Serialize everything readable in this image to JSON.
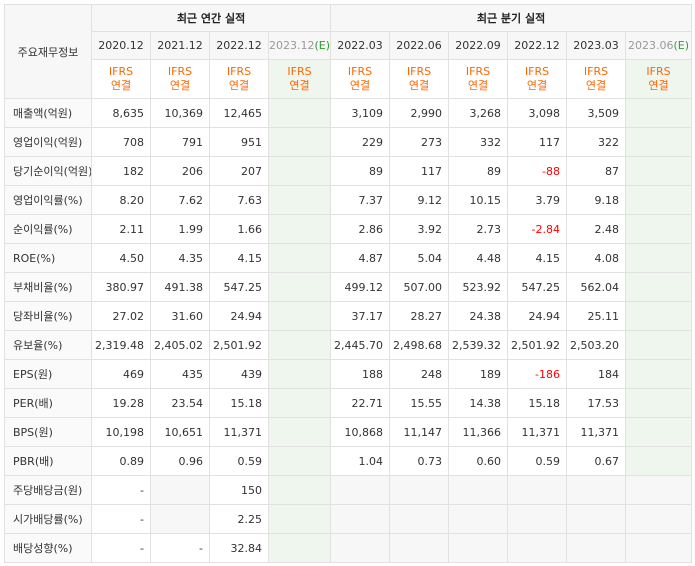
{
  "header": {
    "row_label": "주요재무정보",
    "annual_title": "최근 연간 실적",
    "quarter_title": "최근 분기 실적"
  },
  "periods": {
    "annual": [
      "2020.12",
      "2021.12",
      "2022.12",
      "2023.12"
    ],
    "annual_est_mark": "(E)",
    "quarter": [
      "2022.03",
      "2022.06",
      "2022.09",
      "2022.12",
      "2023.03",
      "2023.06"
    ],
    "quarter_est_mark": "(E)"
  },
  "basis": {
    "line1": "IFRS",
    "line2": "연결"
  },
  "rows": [
    {
      "label": "매출액(억원)",
      "values": [
        "8,635",
        "10,369",
        "12,465",
        "",
        "3,109",
        "2,990",
        "3,268",
        "3,098",
        "3,509",
        ""
      ]
    },
    {
      "label": "영업이익(억원)",
      "values": [
        "708",
        "791",
        "951",
        "",
        "229",
        "273",
        "332",
        "117",
        "322",
        ""
      ]
    },
    {
      "label": "당기순이익(억원)",
      "values": [
        "182",
        "206",
        "207",
        "",
        "89",
        "117",
        "89",
        "-88",
        "87",
        ""
      ]
    },
    {
      "label": "영업이익률(%)",
      "values": [
        "8.20",
        "7.62",
        "7.63",
        "",
        "7.37",
        "9.12",
        "10.15",
        "3.79",
        "9.18",
        ""
      ]
    },
    {
      "label": "순이익률(%)",
      "values": [
        "2.11",
        "1.99",
        "1.66",
        "",
        "2.86",
        "3.92",
        "2.73",
        "-2.84",
        "2.48",
        ""
      ]
    },
    {
      "label": "ROE(%)",
      "values": [
        "4.50",
        "4.35",
        "4.15",
        "",
        "4.87",
        "5.04",
        "4.48",
        "4.15",
        "4.08",
        ""
      ]
    },
    {
      "label": "부채비율(%)",
      "values": [
        "380.97",
        "491.38",
        "547.25",
        "",
        "499.12",
        "507.00",
        "523.92",
        "547.25",
        "562.04",
        ""
      ]
    },
    {
      "label": "당좌비율(%)",
      "values": [
        "27.02",
        "31.60",
        "24.94",
        "",
        "37.17",
        "28.27",
        "24.38",
        "24.94",
        "25.11",
        ""
      ]
    },
    {
      "label": "유보율(%)",
      "values": [
        "2,319.48",
        "2,405.02",
        "2,501.92",
        "",
        "2,445.70",
        "2,498.68",
        "2,539.32",
        "2,501.92",
        "2,503.20",
        ""
      ]
    },
    {
      "label": "EPS(원)",
      "values": [
        "469",
        "435",
        "439",
        "",
        "188",
        "248",
        "189",
        "-186",
        "184",
        ""
      ]
    },
    {
      "label": "PER(배)",
      "values": [
        "19.28",
        "23.54",
        "15.18",
        "",
        "22.71",
        "15.55",
        "14.38",
        "15.18",
        "17.53",
        ""
      ]
    },
    {
      "label": "BPS(원)",
      "values": [
        "10,198",
        "10,651",
        "11,371",
        "",
        "10,868",
        "11,147",
        "11,366",
        "11,371",
        "11,371",
        ""
      ]
    },
    {
      "label": "PBR(배)",
      "values": [
        "0.89",
        "0.96",
        "0.59",
        "",
        "1.04",
        "0.73",
        "0.60",
        "0.59",
        "0.67",
        ""
      ]
    },
    {
      "label": "주당배당금(원)",
      "values": [
        "-",
        "",
        "150",
        "",
        "",
        "",
        "",
        "",
        "",
        ""
      ]
    },
    {
      "label": "시가배당률(%)",
      "values": [
        "-",
        "",
        "2.25",
        "",
        "",
        "",
        "",
        "",
        "",
        ""
      ]
    },
    {
      "label": "배당성향(%)",
      "values": [
        "-",
        "-",
        "32.84",
        "",
        "",
        "",
        "",
        "",
        "",
        ""
      ]
    }
  ],
  "colors": {
    "ifrs": "#ff6600",
    "negative": "#ff0000",
    "estimate_mark": "#339933",
    "estimate_bg": "#eef6ee"
  }
}
